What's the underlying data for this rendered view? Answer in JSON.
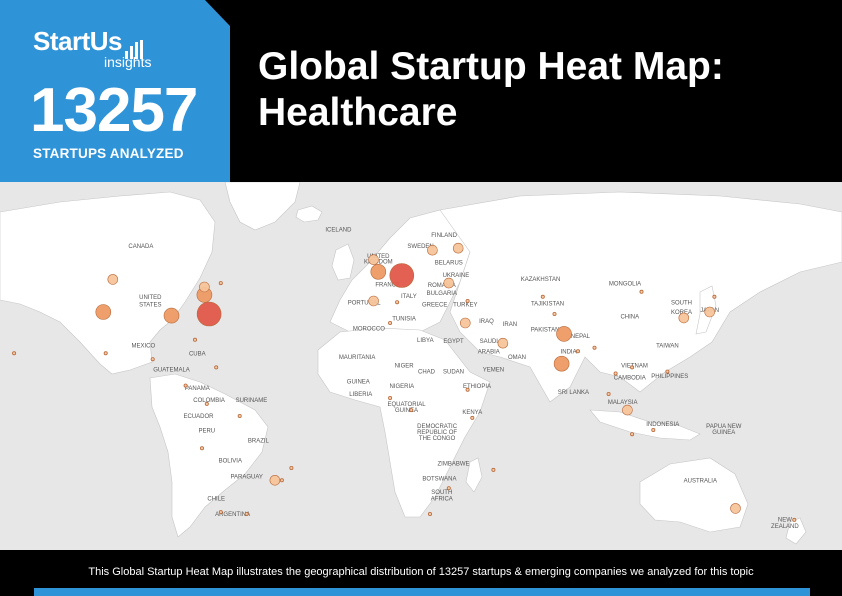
{
  "brand": {
    "logo_main": "StartUs",
    "logo_sub": "insights"
  },
  "stats": {
    "count": "13257",
    "count_label": "STARTUPS ANALYZED"
  },
  "title_line1": "Global Startup Heat Map:",
  "title_line2": "Healthcare",
  "footer": {
    "text": "This Global Startup Heat Map illustrates the geographical distribution of 13257 startups & emerging companies we analyzed for this topic"
  },
  "colors": {
    "accent": "#2f93d8",
    "bubble_low": "#f7c49a",
    "bubble_mid": "#ee9a63",
    "bubble_high": "#e0584a"
  },
  "map_labels": [
    {
      "text": "CANADA",
      "lon": -103,
      "lat": 59
    },
    {
      "text": "ICELAND",
      "lon": -19,
      "lat": 64.9
    },
    {
      "text": "FINLAND",
      "lon": 26,
      "lat": 63
    },
    {
      "text": "SWEDEN",
      "lon": 16,
      "lat": 59
    },
    {
      "text": "UNITED",
      "lon": -2,
      "lat": 55.6
    },
    {
      "text": "KINGDOM",
      "lon": -2,
      "lat": 53.6
    },
    {
      "text": "BELARUS",
      "lon": 28,
      "lat": 53.2
    },
    {
      "text": "UKRAINE",
      "lon": 31,
      "lat": 48.8
    },
    {
      "text": "KAZAKHSTAN",
      "lon": 67,
      "lat": 47.3
    },
    {
      "text": "MONGOLIA",
      "lon": 103,
      "lat": 45.8
    },
    {
      "text": "FRANCE",
      "lon": 2,
      "lat": 45.4
    },
    {
      "text": "ROMANIA",
      "lon": 25,
      "lat": 45.2
    },
    {
      "text": "BULGARIA",
      "lon": 25,
      "lat": 42.4
    },
    {
      "text": "ITALY",
      "lon": 11,
      "lat": 41.3
    },
    {
      "text": "UNITED",
      "lon": -99,
      "lat": 41
    },
    {
      "text": "STATES",
      "lon": -99,
      "lat": 38.3
    },
    {
      "text": "PORTUGAL",
      "lon": -8,
      "lat": 39
    },
    {
      "text": "GREECE",
      "lon": 22,
      "lat": 38.3
    },
    {
      "text": "TURKEY",
      "lon": 35,
      "lat": 38.3
    },
    {
      "text": "TAJIKISTAN",
      "lon": 70,
      "lat": 38.6
    },
    {
      "text": "SOUTH",
      "lon": 127,
      "lat": 38.9
    },
    {
      "text": "KOREA",
      "lon": 127,
      "lat": 35.6
    },
    {
      "text": "JAPAN",
      "lon": 139,
      "lat": 36.3
    },
    {
      "text": "CHINA",
      "lon": 105,
      "lat": 34
    },
    {
      "text": "TUNISIA",
      "lon": 9,
      "lat": 33.2
    },
    {
      "text": "IRAQ",
      "lon": 44,
      "lat": 32.4
    },
    {
      "text": "IRAN",
      "lon": 54,
      "lat": 31.3
    },
    {
      "text": "MOROCCO",
      "lon": -6,
      "lat": 29.8
    },
    {
      "text": "PAKISTAN",
      "lon": 69,
      "lat": 29.3
    },
    {
      "text": "NEPAL",
      "lon": 84,
      "lat": 27
    },
    {
      "text": "LIBYA",
      "lon": 18,
      "lat": 25.7
    },
    {
      "text": "EGYPT",
      "lon": 30,
      "lat": 25.2
    },
    {
      "text": "SAUDI",
      "lon": 45,
      "lat": 25.2
    },
    {
      "text": "ARABIA",
      "lon": 45,
      "lat": 21.6
    },
    {
      "text": "MEXICO",
      "lon": -102,
      "lat": 23.6
    },
    {
      "text": "TAIWAN",
      "lon": 121,
      "lat": 23.6
    },
    {
      "text": "INDIA",
      "lon": 79,
      "lat": 21.6
    },
    {
      "text": "OMAN",
      "lon": 57,
      "lat": 19.5
    },
    {
      "text": "CUBA",
      "lon": -79,
      "lat": 20.8
    },
    {
      "text": "MAURITANIA",
      "lon": -11,
      "lat": 19.5
    },
    {
      "text": "VIETNAM",
      "lon": 107,
      "lat": 16.6
    },
    {
      "text": "NIGER",
      "lon": 9,
      "lat": 16.6
    },
    {
      "text": "YEMEN",
      "lon": 47,
      "lat": 15.1
    },
    {
      "text": "GUATEMALA",
      "lon": -90,
      "lat": 15.1
    },
    {
      "text": "CHAD",
      "lon": 18.5,
      "lat": 14.4
    },
    {
      "text": "SUDAN",
      "lon": 30,
      "lat": 14.4
    },
    {
      "text": "PHILIPPINES",
      "lon": 122,
      "lat": 12.9
    },
    {
      "text": "CAMBODIA",
      "lon": 105,
      "lat": 12.2
    },
    {
      "text": "GUINEA",
      "lon": -10.5,
      "lat": 10.8
    },
    {
      "text": "NIGERIA",
      "lon": 8,
      "lat": 9.3
    },
    {
      "text": "ETHIOPIA",
      "lon": 40,
      "lat": 9.3
    },
    {
      "text": "PANAMA",
      "lon": -79,
      "lat": 8.6
    },
    {
      "text": "SRI LANKA",
      "lon": 81,
      "lat": 7.1
    },
    {
      "text": "LIBERIA",
      "lon": -9.5,
      "lat": 6.4
    },
    {
      "text": "COLOMBIA",
      "lon": -74,
      "lat": 4.3
    },
    {
      "text": "SURINAME",
      "lon": -56,
      "lat": 4.3
    },
    {
      "text": "MALAYSIA",
      "lon": 102,
      "lat": 3.6
    },
    {
      "text": "EQUATORIAL",
      "lon": 10,
      "lat": 2.9
    },
    {
      "text": "GUINEA",
      "lon": 10,
      "lat": 0.7
    },
    {
      "text": "KENYA",
      "lon": 38,
      "lat": 0
    },
    {
      "text": "ECUADOR",
      "lon": -78.5,
      "lat": -1.4
    },
    {
      "text": "INDONESIA",
      "lon": 119,
      "lat": -4.3
    },
    {
      "text": "PAPUA NEW",
      "lon": 145,
      "lat": -5
    },
    {
      "text": "GUINEA",
      "lon": 145,
      "lat": -7.2
    },
    {
      "text": "DEMOCRATIC",
      "lon": 23,
      "lat": -5
    },
    {
      "text": "REPUBLIC OF",
      "lon": 23,
      "lat": -7.2
    },
    {
      "text": "THE CONGO",
      "lon": 23,
      "lat": -9.3
    },
    {
      "text": "PERU",
      "lon": -75,
      "lat": -6.5
    },
    {
      "text": "BRAZIL",
      "lon": -53,
      "lat": -10.1
    },
    {
      "text": "BOLIVIA",
      "lon": -65,
      "lat": -17.2
    },
    {
      "text": "ZIMBABWE",
      "lon": 30,
      "lat": -18.4
    },
    {
      "text": "PARAGUAY",
      "lon": -58,
      "lat": -22.9
    },
    {
      "text": "BOTSWANA",
      "lon": 24,
      "lat": -23.6
    },
    {
      "text": "AUSTRALIA",
      "lon": 135,
      "lat": -24.3
    },
    {
      "text": "SOUTH",
      "lon": 25,
      "lat": -28.5
    },
    {
      "text": "AFRICA",
      "lon": 25,
      "lat": -30.7
    },
    {
      "text": "CHILE",
      "lon": -71,
      "lat": -30.7
    },
    {
      "text": "ARGENTINA",
      "lon": -64,
      "lat": -36.3
    },
    {
      "text": "NEW",
      "lon": 171,
      "lat": -38.3
    },
    {
      "text": "ZEALAND",
      "lon": 171,
      "lat": -40.5
    }
  ],
  "hubs": [
    {
      "lon": -74,
      "lat": 35.6,
      "level": 3
    },
    {
      "lon": 8,
      "lat": 49.3,
      "level": 3
    },
    {
      "lon": -76,
      "lat": 42.4,
      "level": 2
    },
    {
      "lon": -119,
      "lat": 36.3,
      "level": 2
    },
    {
      "lon": -90,
      "lat": 35,
      "level": 2
    },
    {
      "lon": -2,
      "lat": 50.6,
      "level": 2
    },
    {
      "lon": 77,
      "lat": 28.5,
      "level": 2
    },
    {
      "lon": 76,
      "lat": 17.9,
      "level": 2
    },
    {
      "lon": -115,
      "lat": 47.9,
      "level": 1
    },
    {
      "lon": 51,
      "lat": 25.2,
      "level": 1
    },
    {
      "lon": 104,
      "lat": 1.4,
      "level": 1
    },
    {
      "lon": 150,
      "lat": -33.6,
      "level": 1
    },
    {
      "lon": 35,
      "lat": 32.4,
      "level": 1
    },
    {
      "lon": 128,
      "lat": 34.2,
      "level": 1
    },
    {
      "lon": 139,
      "lat": 36.3,
      "level": 1
    },
    {
      "lon": -46,
      "lat": -23.6,
      "level": 1
    },
    {
      "lon": -4,
      "lat": 40.2,
      "level": 1
    },
    {
      "lon": 28,
      "lat": 46.6,
      "level": 1
    },
    {
      "lon": 21,
      "lat": 58.3,
      "level": 1
    },
    {
      "lon": 32,
      "lat": 59,
      "level": 1
    },
    {
      "lon": -76,
      "lat": 45.2,
      "level": 1
    },
    {
      "lon": -4,
      "lat": 54.9,
      "level": 1
    },
    {
      "lon": -98,
      "lat": 19.5,
      "level": 0
    },
    {
      "lon": -80,
      "lat": 26.4,
      "level": 0
    },
    {
      "lon": -71,
      "lat": 16.6,
      "level": 0
    },
    {
      "lon": -69,
      "lat": 46.6,
      "level": 0
    },
    {
      "lon": -118,
      "lat": 21.6,
      "level": 0
    },
    {
      "lon": -84,
      "lat": 10.1,
      "level": 0
    },
    {
      "lon": -75,
      "lat": 3.6,
      "level": 0
    },
    {
      "lon": -61,
      "lat": -0.7,
      "level": 0
    },
    {
      "lon": -77,
      "lat": -12.2,
      "level": 0
    },
    {
      "lon": -58,
      "lat": -35.6,
      "level": 0
    },
    {
      "lon": -39,
      "lat": -19.2,
      "level": 0
    },
    {
      "lon": -43,
      "lat": -23.6,
      "level": 0
    },
    {
      "lon": -69,
      "lat": -34.9,
      "level": 0
    },
    {
      "lon": 6,
      "lat": 39.8,
      "level": 0
    },
    {
      "lon": 36,
      "lat": 40.2,
      "level": 0
    },
    {
      "lon": 3,
      "lat": 32.4,
      "level": 0
    },
    {
      "lon": 3,
      "lat": 5.7,
      "level": 0
    },
    {
      "lon": 12,
      "lat": 1.4,
      "level": 0
    },
    {
      "lon": 38,
      "lat": -1.4,
      "level": 0
    },
    {
      "lon": 36,
      "lat": 8.6,
      "level": 0
    },
    {
      "lon": 28,
      "lat": -26.4,
      "level": 0
    },
    {
      "lon": 20,
      "lat": -35.6,
      "level": 0
    },
    {
      "lon": 47,
      "lat": -19.9,
      "level": 0
    },
    {
      "lon": 68,
      "lat": 41.7,
      "level": 0
    },
    {
      "lon": 73,
      "lat": 35.6,
      "level": 0
    },
    {
      "lon": 83,
      "lat": 22.3,
      "level": 0
    },
    {
      "lon": 90,
      "lat": 23.6,
      "level": 0
    },
    {
      "lon": 99,
      "lat": 14.4,
      "level": 0
    },
    {
      "lon": 106,
      "lat": 16.6,
      "level": 0
    },
    {
      "lon": 121,
      "lat": 15.1,
      "level": 0
    },
    {
      "lon": 96,
      "lat": 7.1,
      "level": 0
    },
    {
      "lon": 106,
      "lat": -7.2,
      "level": 0
    },
    {
      "lon": 115,
      "lat": -5.7,
      "level": 0
    },
    {
      "lon": 110,
      "lat": 43.5,
      "level": 0
    },
    {
      "lon": 141,
      "lat": 41.7,
      "level": 0
    },
    {
      "lon": 175,
      "lat": -37.7,
      "level": 0
    },
    {
      "lon": -157,
      "lat": 21.6,
      "level": 0
    }
  ]
}
